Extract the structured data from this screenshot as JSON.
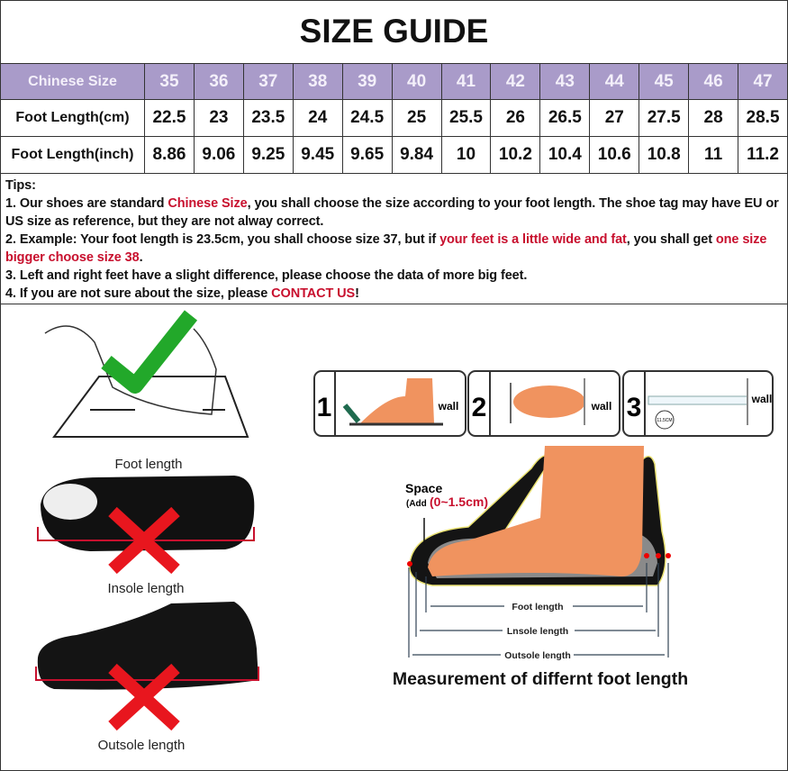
{
  "title": "SIZE GUIDE",
  "table": {
    "rows": [
      {
        "label": "Chinese Size",
        "values": [
          "35",
          "36",
          "37",
          "38",
          "39",
          "40",
          "41",
          "42",
          "43",
          "44",
          "45",
          "46",
          "47"
        ]
      },
      {
        "label": "Foot Length(cm)",
        "values": [
          "22.5",
          "23",
          "23.5",
          "24",
          "24.5",
          "25",
          "25.5",
          "26",
          "26.5",
          "27",
          "27.5",
          "28",
          "28.5"
        ]
      },
      {
        "label": "Foot Length(inch)",
        "values": [
          "8.86",
          "9.06",
          "9.25",
          "9.45",
          "9.65",
          "9.84",
          "10",
          "10.2",
          "10.4",
          "10.6",
          "10.8",
          "11",
          "11.2"
        ]
      }
    ],
    "header_color": "#a99bc9"
  },
  "tips": {
    "heading": "Tips:",
    "t1a": "1. Our shoes are standard ",
    "t1b": "Chinese Size",
    "t1c": ", you shall choose the size according to your foot length. The shoe tag may have EU or US size as reference, but they are not alway correct.",
    "t2a": "2. Example: Your foot length is 23.5cm, you shall choose size 37, but if ",
    "t2b": "your feet is a little wide and fat",
    "t2c": ", you shall get ",
    "t2d": "one size bigger choose size 38",
    "t2e": ".",
    "t3": "3. Left and right feet have a slight difference, please choose the data of more big feet.",
    "t4a": "4. If you are not sure about the size, please ",
    "t4b": "CONTACT US",
    "t4c": "!",
    "highlight_color": "#c8102e"
  },
  "illustrations": {
    "foot_length": "Foot length",
    "insole_length": "Insole length",
    "outsole_length": "Outsole length",
    "steps": [
      {
        "number": "1",
        "wall": "wall"
      },
      {
        "number": "2",
        "wall": "wall"
      },
      {
        "number": "3",
        "wall": "wall",
        "badge": "11.5CM"
      }
    ],
    "space": "Space",
    "add": "(Add",
    "add_range": "(0~1.5cm)",
    "dim_foot": "Foot length",
    "dim_insole": "Lnsole length",
    "dim_outsole": "Outsole length",
    "caption": "Measurement of differnt foot length"
  }
}
